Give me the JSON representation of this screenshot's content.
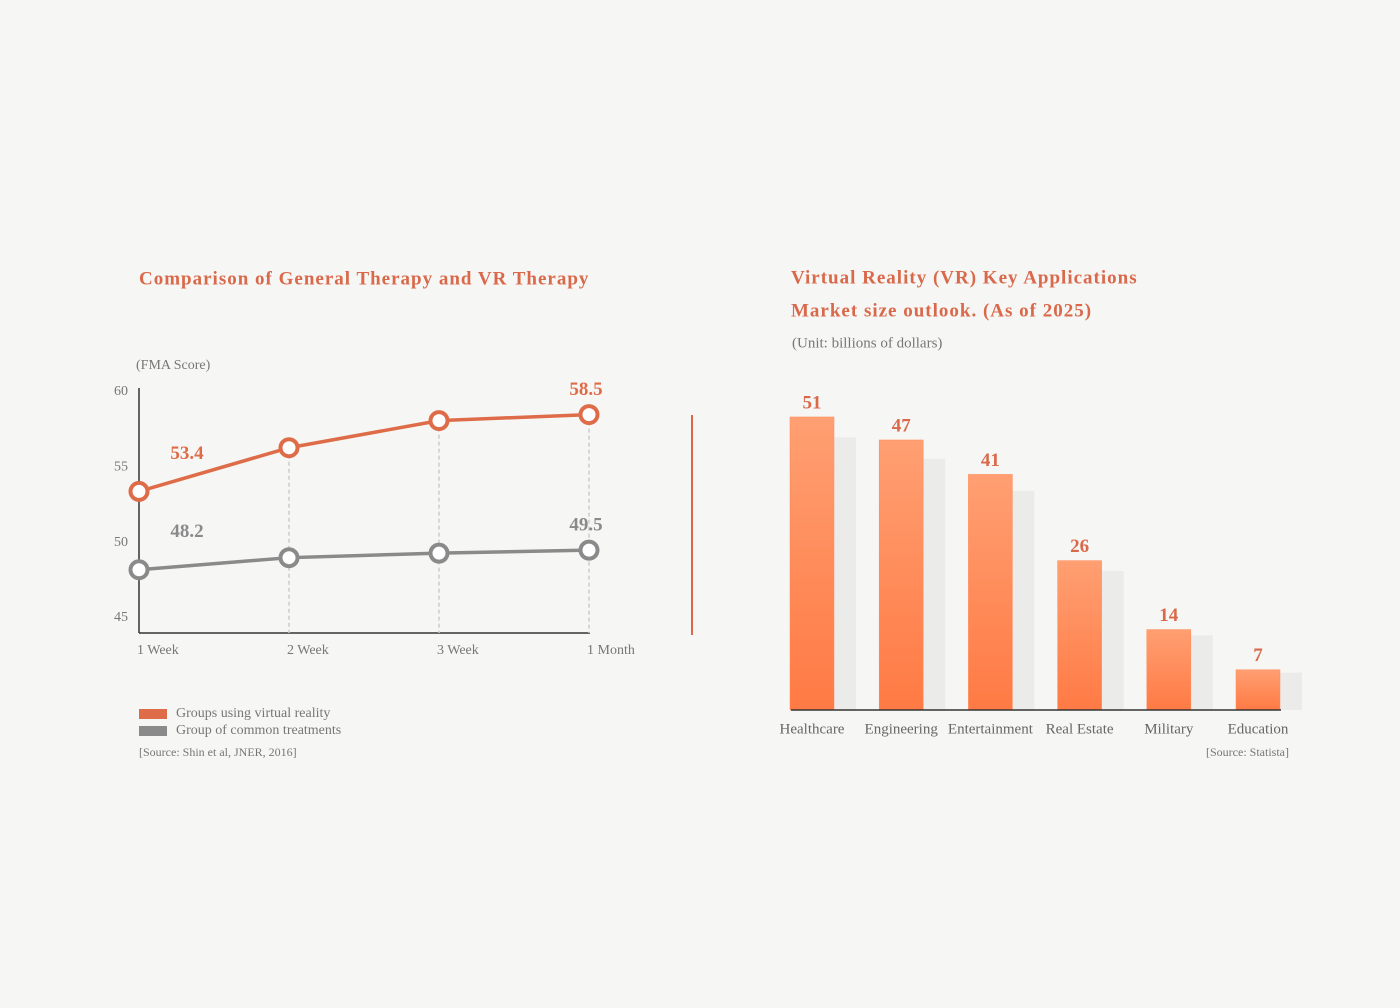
{
  "chart_data": [
    {
      "type": "line",
      "title": "Comparison of General Therapy and VR Therapy",
      "y_label": "(FMA Score)",
      "categories": [
        "1 Week",
        "2 Week",
        "3 Week",
        "1 Month"
      ],
      "series": [
        {
          "name": "Groups using virtual reality",
          "color": "#df6c48",
          "values": [
            53.4,
            56.3,
            58.1,
            58.5
          ],
          "value_labels": [
            "53.4",
            null,
            null,
            "58.5"
          ]
        },
        {
          "name": "Group of common treatments",
          "color": "#8a8a8a",
          "values": [
            48.2,
            49.0,
            49.3,
            49.5
          ],
          "value_labels": [
            "48.2",
            null,
            null,
            "49.5"
          ]
        }
      ],
      "ylim": [
        44,
        60
      ],
      "yticks": [
        45,
        50,
        55,
        60
      ],
      "source": "[Source: Shin et al, JNER, 2016]"
    },
    {
      "type": "bar",
      "title": [
        "Virtual Reality (VR) Key Applications",
        "Market size outlook. (As of 2025)"
      ],
      "subtitle": "(Unit: billions of dollars)",
      "categories": [
        "Healthcare",
        "Engineering",
        "Entertainment",
        "Real Estate",
        "Military",
        "Education"
      ],
      "values": [
        51,
        47,
        41,
        26,
        14,
        7
      ],
      "color": "#ff8a58",
      "ylim": [
        0,
        55
      ],
      "source": "[Source: Statista]"
    }
  ]
}
